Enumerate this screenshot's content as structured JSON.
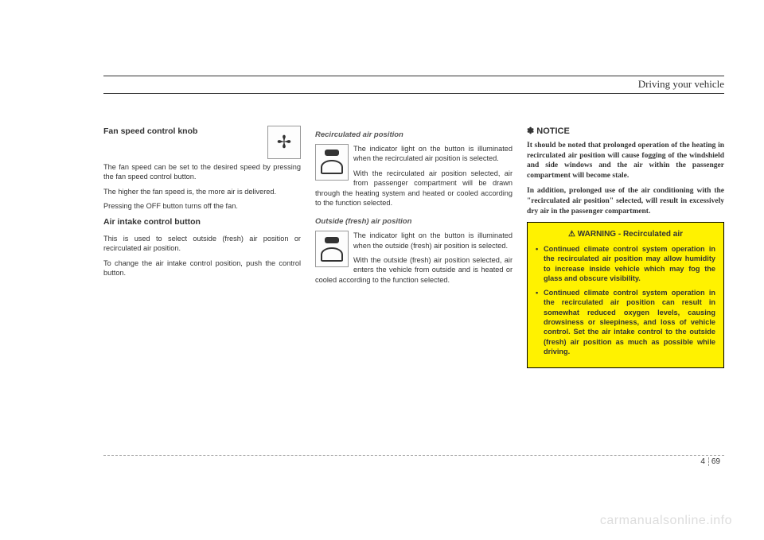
{
  "header": {
    "section": "Driving your vehicle"
  },
  "col1": {
    "h1": "Fan speed control knob",
    "p1": "The fan speed can be set to the desired speed by pressing the fan speed control button.",
    "p2": "The higher the fan speed is, the more air is delivered.",
    "p3": "Pressing the OFF button turns off the fan.",
    "h2": "Air intake control button",
    "p4": "This is used to select outside (fresh) air position or recirculated air position.",
    "p5": "To change the air intake control position, push the control button."
  },
  "col2": {
    "h1": "Recirculated air position",
    "p1": "The indicator light on the button is illuminated when the recirculated air position is selected.",
    "p2": "With the recirculated air position selected, air from passenger compartment will be drawn through the heating system and heated or cooled according to the function selected.",
    "h2": "Outside (fresh) air position",
    "p3": "The indicator light on the button is illuminated when the outside (fresh) air position is selected.",
    "p4": "With the outside (fresh) air position selected, air enters the vehicle from outside and is heated or cooled according to the function selected."
  },
  "col3": {
    "notice_head": "✽ NOTICE",
    "notice1": "It should be noted that prolonged operation of the heating in recirculated air position will cause fogging of the windshield and side windows and the air within the passenger compartment will become stale.",
    "notice2": "In addition, prolonged use of the air conditioning with the \"recirculated air position\" selected, will result in excessively dry air in the passenger compartment.",
    "warn_title": "⚠ WARNING - Recirculated air",
    "warn1": "Continued climate control system operation in the recirculated air position may allow humidity to increase inside vehicle which may fog the glass and obscure visibility.",
    "warn2": "Continued climate control system operation in the recirculated air position can result in somewhat reduced oxygen levels, causing drowsiness or sleepiness, and loss of vehicle control. Set the air intake control to the outside (fresh) air position as much as possible while driving."
  },
  "footer": {
    "chapter": "4",
    "page": "69"
  },
  "watermark": "carmanualsonline.info",
  "colors": {
    "warning_bg": "#fff200",
    "text": "#333333",
    "watermark": "#dddddd"
  }
}
